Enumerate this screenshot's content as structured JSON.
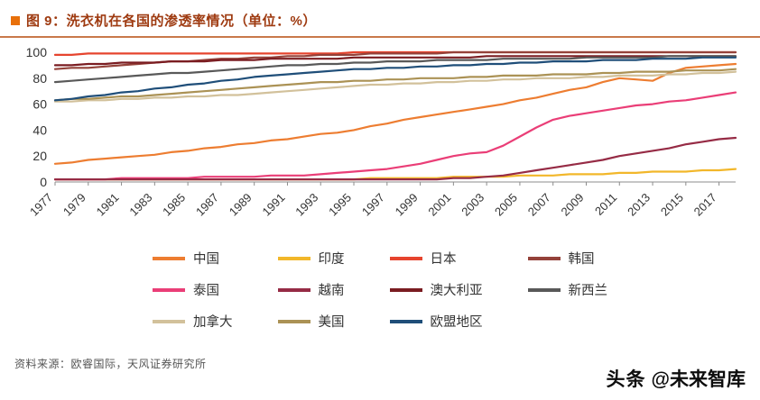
{
  "header": {
    "title": "图 9：洗衣机在各国的渗透率情况（单位：%）"
  },
  "footer": {
    "source": "资料来源：欧睿国际，天风证券研究所",
    "watermark_logo": "头条",
    "watermark_handle": "@未来智库"
  },
  "colors": {
    "title_text": "#9E3A10",
    "header_bullet": "#E8700A",
    "header_rule": "#C0622B",
    "axis": "#8C8C8C",
    "tick_text": "#333333"
  },
  "chart_data": {
    "type": "line",
    "title": "洗衣机在各国的渗透率情况",
    "unit": "%",
    "xlabel": "",
    "ylabel": "",
    "ylim": [
      0,
      100
    ],
    "y_ticks": [
      0,
      20,
      40,
      60,
      80,
      100
    ],
    "grid": false,
    "legend_position": "bottom",
    "x": [
      1977,
      1978,
      1979,
      1980,
      1981,
      1982,
      1983,
      1984,
      1985,
      1986,
      1987,
      1988,
      1989,
      1990,
      1991,
      1992,
      1993,
      1994,
      1995,
      1996,
      1997,
      1998,
      1999,
      2000,
      2001,
      2002,
      2003,
      2004,
      2005,
      2006,
      2007,
      2008,
      2009,
      2010,
      2011,
      2012,
      2013,
      2014,
      2015,
      2016,
      2017,
      2018
    ],
    "x_tick_labels": [
      "1977",
      "1979",
      "1981",
      "1983",
      "1985",
      "1987",
      "1989",
      "1991",
      "1993",
      "1995",
      "1997",
      "1999",
      "2001",
      "2003",
      "2005",
      "2007",
      "2009",
      "2011",
      "2013",
      "2015",
      "2017"
    ],
    "series": [
      {
        "key": "china",
        "name": "中国",
        "color": "#ED7D31",
        "values": [
          14,
          15,
          17,
          18,
          19,
          20,
          21,
          23,
          24,
          26,
          27,
          29,
          30,
          32,
          33,
          35,
          37,
          38,
          40,
          43,
          45,
          48,
          50,
          52,
          54,
          56,
          58,
          60,
          63,
          65,
          68,
          71,
          73,
          77,
          80,
          79,
          78,
          84,
          88,
          89,
          90,
          91
        ]
      },
      {
        "key": "india",
        "name": "印度",
        "color": "#F2B72A",
        "values": [
          2,
          2,
          2,
          2,
          2,
          2,
          2,
          2,
          2,
          2,
          2,
          2,
          2,
          2,
          2,
          2,
          2,
          2,
          2,
          3,
          3,
          3,
          3,
          3,
          4,
          4,
          4,
          4,
          5,
          5,
          5,
          6,
          6,
          6,
          7,
          7,
          8,
          8,
          8,
          9,
          9,
          10
        ]
      },
      {
        "key": "japan",
        "name": "日本",
        "color": "#E6442E",
        "values": [
          98,
          98,
          99,
          99,
          99,
          99,
          99,
          99,
          99,
          99,
          99,
          99,
          99,
          99,
          99,
          99,
          99,
          99,
          100,
          100,
          100,
          100,
          100,
          100,
          100,
          100,
          100,
          100,
          100,
          100,
          100,
          100,
          100,
          100,
          100,
          100,
          100,
          100,
          100,
          100,
          100,
          100
        ]
      },
      {
        "key": "korea",
        "name": "韩国",
        "color": "#94423A",
        "values": [
          87,
          88,
          88,
          89,
          90,
          91,
          92,
          93,
          93,
          94,
          95,
          95,
          96,
          96,
          97,
          97,
          98,
          98,
          98,
          99,
          99,
          99,
          99,
          99,
          100,
          100,
          100,
          100,
          100,
          100,
          100,
          100,
          100,
          100,
          100,
          100,
          100,
          100,
          100,
          100,
          100,
          100
        ]
      },
      {
        "key": "thailand",
        "name": "泰国",
        "color": "#EA3E77",
        "values": [
          2,
          2,
          2,
          2,
          3,
          3,
          3,
          3,
          3,
          4,
          4,
          4,
          4,
          5,
          5,
          5,
          6,
          7,
          8,
          9,
          10,
          12,
          14,
          17,
          20,
          22,
          23,
          28,
          35,
          42,
          48,
          51,
          53,
          55,
          57,
          59,
          60,
          62,
          63,
          65,
          67,
          69
        ]
      },
      {
        "key": "vietnam",
        "name": "越南",
        "color": "#962B45",
        "values": [
          2,
          2,
          2,
          2,
          2,
          2,
          2,
          2,
          2,
          2,
          2,
          2,
          2,
          2,
          2,
          2,
          2,
          2,
          2,
          2,
          2,
          2,
          2,
          2,
          3,
          3,
          4,
          5,
          7,
          9,
          11,
          13,
          15,
          17,
          20,
          22,
          24,
          26,
          29,
          31,
          33,
          34
        ]
      },
      {
        "key": "australia",
        "name": "澳大利亚",
        "color": "#7A1C21",
        "values": [
          90,
          90,
          91,
          91,
          92,
          92,
          92,
          93,
          93,
          93,
          94,
          94,
          94,
          95,
          95,
          95,
          95,
          95,
          96,
          96,
          96,
          96,
          96,
          96,
          96,
          96,
          97,
          97,
          97,
          97,
          97,
          97,
          97,
          97,
          97,
          97,
          97,
          97,
          97,
          97,
          97,
          97
        ]
      },
      {
        "key": "new-zealand",
        "name": "新西兰",
        "color": "#595959",
        "values": [
          77,
          78,
          79,
          80,
          81,
          82,
          83,
          84,
          84,
          85,
          86,
          87,
          88,
          89,
          90,
          90,
          91,
          91,
          92,
          92,
          93,
          93,
          93,
          94,
          94,
          94,
          94,
          95,
          95,
          95,
          95,
          95,
          96,
          96,
          96,
          96,
          96,
          97,
          97,
          97,
          97,
          97
        ]
      },
      {
        "key": "canada",
        "name": "加拿大",
        "color": "#D2C19B",
        "values": [
          62,
          62,
          63,
          63,
          64,
          64,
          65,
          65,
          66,
          66,
          67,
          67,
          68,
          69,
          70,
          71,
          72,
          73,
          74,
          75,
          75,
          76,
          76,
          77,
          77,
          78,
          78,
          79,
          79,
          80,
          80,
          80,
          81,
          81,
          82,
          82,
          82,
          83,
          83,
          84,
          84,
          85
        ]
      },
      {
        "key": "usa",
        "name": "美国",
        "color": "#AB9255",
        "values": [
          63,
          64,
          64,
          65,
          66,
          66,
          67,
          68,
          69,
          70,
          71,
          72,
          73,
          74,
          75,
          76,
          77,
          77,
          78,
          78,
          79,
          79,
          80,
          80,
          80,
          81,
          81,
          82,
          82,
          82,
          83,
          83,
          83,
          84,
          84,
          85,
          85,
          85,
          86,
          86,
          86,
          87
        ]
      },
      {
        "key": "eu",
        "name": "欧盟地区",
        "color": "#1F4E79",
        "values": [
          63,
          64,
          66,
          67,
          69,
          70,
          72,
          73,
          75,
          76,
          78,
          79,
          81,
          82,
          83,
          84,
          85,
          86,
          87,
          87,
          88,
          88,
          89,
          89,
          90,
          90,
          91,
          91,
          92,
          92,
          93,
          93,
          93,
          94,
          94,
          94,
          95,
          95,
          95,
          96,
          96,
          96
        ]
      }
    ]
  }
}
